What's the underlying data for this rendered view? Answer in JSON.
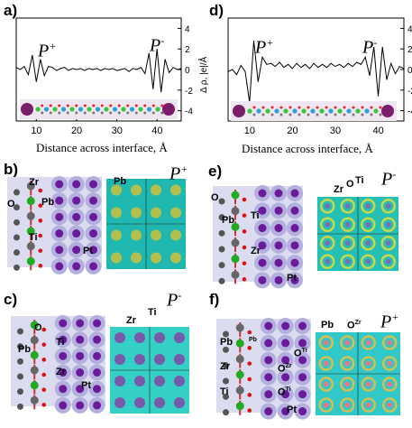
{
  "panels": {
    "a": {
      "label": "a)",
      "tag_left": "P",
      "tag_left_sup": "+",
      "tag_right": "P",
      "tag_right_sup": "-"
    },
    "d": {
      "label": "d)",
      "tag_left": "P",
      "tag_left_sup": "+",
      "tag_right": "P",
      "tag_right_sup": "-"
    },
    "b": {
      "label": "b)",
      "tag": "P",
      "tag_sup": "+",
      "atoms": [
        "Zr",
        "Pb",
        "O",
        "Ti",
        "Pt"
      ],
      "map_label": "Pb"
    },
    "e": {
      "label": "e)",
      "tag": "P",
      "tag_sup": "-",
      "atoms": [
        "O",
        "Ti",
        "Pb",
        "Zr",
        "Pt"
      ],
      "map_labels": [
        "Zr",
        "O",
        "Ti"
      ]
    },
    "c": {
      "label": "c)",
      "tag": "P",
      "tag_sup": "-",
      "atoms": [
        "O",
        "Ti",
        "Pb",
        "Zr",
        "Pt"
      ],
      "map_labels": [
        "Zr",
        "Ti"
      ]
    },
    "f": {
      "label": "f)",
      "tag": "P",
      "tag_sup": "+",
      "atoms": [
        "Pb",
        "Zr",
        "Ti",
        "Pt",
        "O",
        "O"
      ],
      "atom_sub_labels": [
        "Pb",
        "Zr",
        "Ti"
      ],
      "map_labels": [
        "Pb",
        "O",
        "Zr",
        "O",
        "Ti"
      ]
    }
  },
  "axes": {
    "xlabel": "Distance across interface, Å",
    "ylabel": "Δ ρ, |e|/Å",
    "x_ticks": [
      "10",
      "20",
      "30",
      "40"
    ],
    "y_ticks": [
      "4",
      "2",
      "0",
      "-2",
      "-4"
    ]
  },
  "chart_data": [
    {
      "type": "line",
      "panel": "a",
      "xlabel": "Distance across interface, Å",
      "ylabel": "Δ ρ, |e|/Å",
      "xlim": [
        5,
        46
      ],
      "ylim": [
        -5,
        5
      ],
      "x": [
        5,
        6,
        7,
        8,
        9,
        10,
        11,
        12,
        13,
        14,
        15,
        16,
        17,
        18,
        19,
        20,
        21,
        22,
        23,
        24,
        25,
        26,
        27,
        28,
        29,
        30,
        31,
        32,
        33,
        34,
        35,
        36,
        37,
        38,
        39,
        40,
        41,
        42,
        43,
        44,
        45,
        46
      ],
      "y": [
        0.2,
        0,
        0.3,
        -0.5,
        1.4,
        -1.2,
        1.0,
        -0.6,
        0.3,
        0.2,
        -0.1,
        0.1,
        0.2,
        -0.1,
        0.1,
        0,
        0.1,
        -0.1,
        0.1,
        0,
        0.1,
        -0.1,
        0.1,
        0,
        0.1,
        -0.1,
        0,
        0.1,
        -0.2,
        0.1,
        0,
        0.2,
        -0.4,
        1.6,
        -1.9,
        2.0,
        -2.2,
        1.0,
        -0.3,
        0.2,
        0,
        0.1
      ]
    },
    {
      "type": "line",
      "panel": "d",
      "xlabel": "Distance across interface, Å",
      "ylabel": "Δ ρ, |e|/Å",
      "xlim": [
        5,
        46
      ],
      "ylim": [
        -5,
        5
      ],
      "x": [
        5,
        6,
        7,
        8,
        9,
        10,
        11,
        12,
        13,
        14,
        15,
        16,
        17,
        18,
        19,
        20,
        21,
        22,
        23,
        24,
        25,
        26,
        27,
        28,
        29,
        30,
        31,
        32,
        33,
        34,
        35,
        36,
        37,
        38,
        39,
        40,
        41,
        42,
        43,
        44,
        45,
        46
      ],
      "y": [
        -0.2,
        0,
        -0.5,
        0.4,
        -0.2,
        -3.2,
        2.8,
        -1.2,
        1.2,
        0.5,
        0.6,
        0.3,
        0.7,
        0.2,
        0.5,
        0.1,
        0.6,
        0.2,
        0.5,
        0.1,
        0.6,
        0.2,
        0.5,
        0.2,
        0.6,
        0.3,
        0.5,
        0.2,
        0.6,
        0.3,
        0.7,
        0.5,
        1.2,
        -0.6,
        2.2,
        -2.6,
        2.2,
        -1.0,
        0.6,
        -0.4,
        0.3,
        0.1
      ]
    }
  ]
}
